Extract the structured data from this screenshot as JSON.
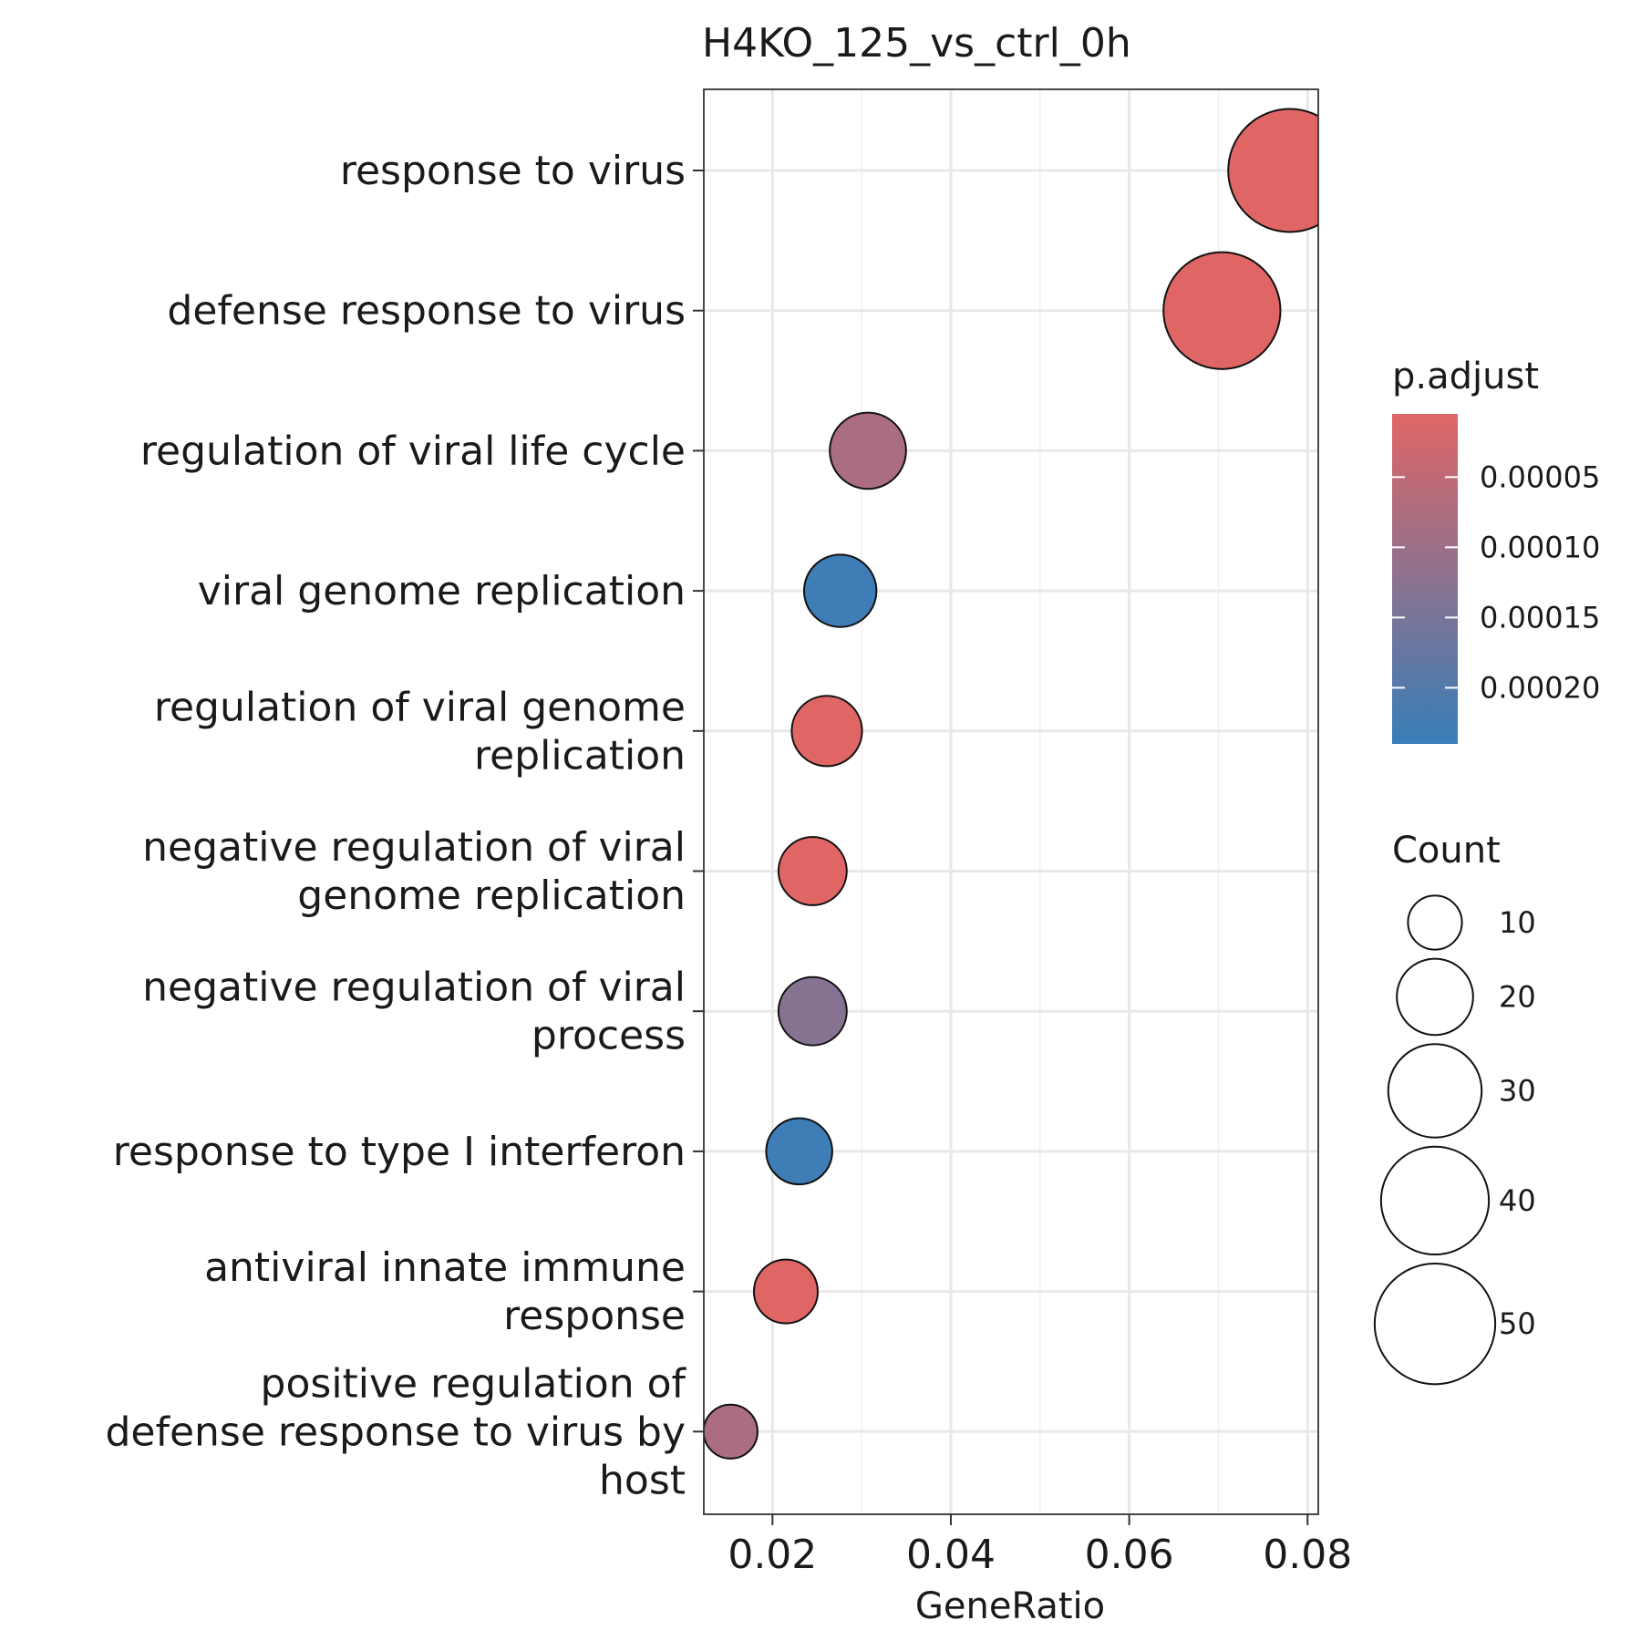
{
  "chart_data": {
    "type": "scatter",
    "title": "H4KO_125_vs_ctrl_0h",
    "xlabel": "GeneRatio",
    "ylabel": "",
    "xlim": [
      0.0123,
      0.0812
    ],
    "xticks": [
      "0.02",
      "0.04",
      "0.06",
      "0.08"
    ],
    "xtick_values": [
      0.02,
      0.04,
      0.06,
      0.08
    ],
    "grid": true,
    "legend_placement": "right",
    "categories": [
      [
        "response to virus"
      ],
      [
        "defense response to virus"
      ],
      [
        "regulation of viral life cycle"
      ],
      [
        "viral genome replication"
      ],
      [
        "regulation of viral genome",
        "replication"
      ],
      [
        "negative regulation of viral",
        "genome replication"
      ],
      [
        "negative regulation of viral",
        "process"
      ],
      [
        "response to type I interferon"
      ],
      [
        "antiviral innate immune",
        "response"
      ],
      [
        "positive regulation of",
        "defense response to virus by",
        "host"
      ]
    ],
    "points": [
      {
        "gene_ratio": 0.078,
        "count": 52,
        "p_adjust": 5e-06
      },
      {
        "gene_ratio": 0.0704,
        "count": 47,
        "p_adjust": 5e-06
      },
      {
        "gene_ratio": 0.0307,
        "count": 20,
        "p_adjust": 8e-05
      },
      {
        "gene_ratio": 0.0276,
        "count": 18,
        "p_adjust": 0.00023
      },
      {
        "gene_ratio": 0.0261,
        "count": 17,
        "p_adjust": 5e-06
      },
      {
        "gene_ratio": 0.0245,
        "count": 16,
        "p_adjust": 5e-06
      },
      {
        "gene_ratio": 0.0245,
        "count": 16,
        "p_adjust": 0.00013
      },
      {
        "gene_ratio": 0.023,
        "count": 15,
        "p_adjust": 0.00023
      },
      {
        "gene_ratio": 0.0215,
        "count": 14,
        "p_adjust": 5e-06
      },
      {
        "gene_ratio": 0.0153,
        "count": 10,
        "p_adjust": 8e-05
      }
    ],
    "color_legend": {
      "title": "p.adjust",
      "labels": [
        "0.00005",
        "0.00010",
        "0.00015",
        "0.00020"
      ],
      "values": [
        5e-05,
        0.0001,
        0.00015,
        0.0002
      ],
      "range": [
        5e-06,
        0.00024
      ],
      "low_color": "#E06666",
      "high_color": "#377EB8"
    },
    "size_legend": {
      "title": "Count",
      "labels": [
        "10",
        "20",
        "30",
        "40",
        "50"
      ],
      "values": [
        10,
        20,
        30,
        40,
        50
      ]
    }
  }
}
